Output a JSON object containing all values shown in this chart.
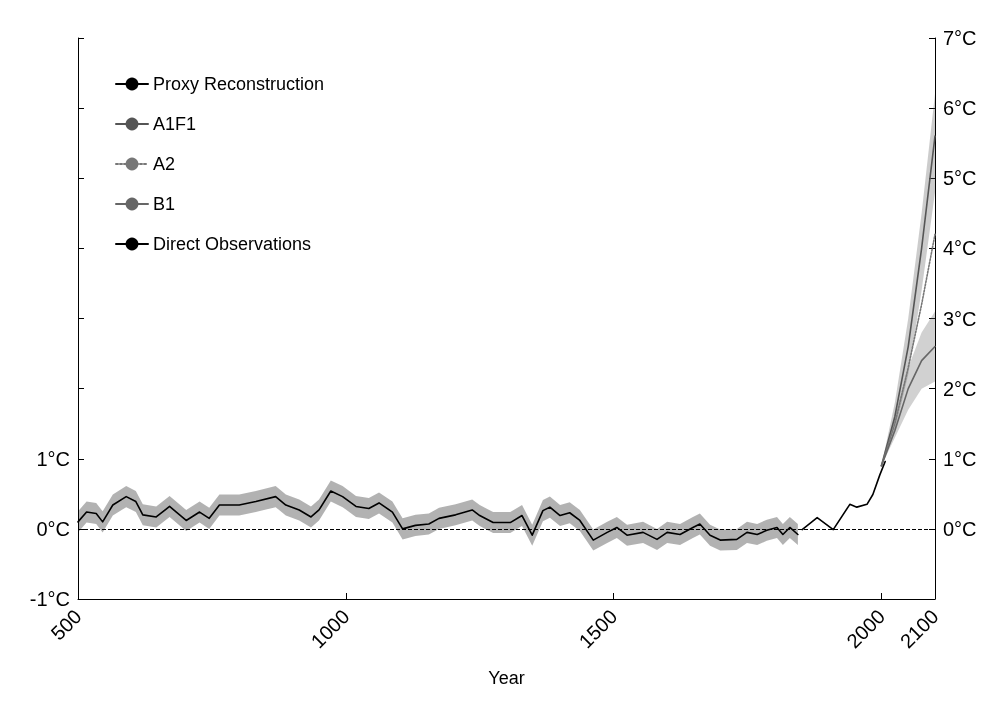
{
  "chart_data": {
    "type": "line",
    "xlabel": "Year",
    "xlim": [
      500,
      2100
    ],
    "xticks": [
      500,
      1000,
      1500,
      2000,
      2100
    ],
    "ylim": [
      -1,
      7
    ],
    "yticks": [
      {
        "value": -1,
        "label": "-1°C"
      },
      {
        "value": 0,
        "label": "0°C"
      },
      {
        "value": 1,
        "label": "1°C"
      },
      {
        "value": 2,
        "label": null
      },
      {
        "value": 3,
        "label": null
      },
      {
        "value": 4,
        "label": null
      },
      {
        "value": 5,
        "label": null
      },
      {
        "value": 6,
        "label": null
      },
      {
        "value": 7,
        "label": null
      }
    ],
    "y2lim": [
      -1,
      7
    ],
    "y2ticks": [
      {
        "value": 0,
        "label": "0°C"
      },
      {
        "value": 1,
        "label": "1°C"
      },
      {
        "value": 2,
        "label": "2°C"
      },
      {
        "value": 3,
        "label": "3°C"
      },
      {
        "value": 4,
        "label": "4°C"
      },
      {
        "value": 5,
        "label": "5°C"
      },
      {
        "value": 6,
        "label": "6°C"
      },
      {
        "value": 7,
        "label": "7°C"
      }
    ],
    "grid": false,
    "legend": "top left",
    "marker": "none",
    "ref_lines": [
      {
        "axis": "y",
        "value": 0,
        "label": null,
        "color": "#000000",
        "line_style": "dashed"
      }
    ],
    "series": [
      {
        "name": "Proxy Reconstruction",
        "color": "#000000",
        "line_style": "solid",
        "x": [
          500,
          516,
          534,
          546,
          565,
          590,
          608,
          621,
          646,
          671,
          702,
          727,
          745,
          764,
          801,
          832,
          869,
          888,
          913,
          935,
          950,
          972,
          994,
          1019,
          1043,
          1062,
          1087,
          1106,
          1130,
          1155,
          1174,
          1205,
          1236,
          1250,
          1275,
          1307,
          1329,
          1348,
          1368,
          1381,
          1400,
          1418,
          1437,
          1462,
          1488,
          1506,
          1525,
          1555,
          1581,
          1600,
          1624,
          1648,
          1661,
          1680,
          1699,
          1730,
          1749,
          1768,
          1786,
          1805,
          1816,
          1829,
          1844
        ],
        "values": [
          0.1,
          0.24,
          0.22,
          0.1,
          0.34,
          0.46,
          0.39,
          0.2,
          0.17,
          0.32,
          0.12,
          0.24,
          0.15,
          0.34,
          0.34,
          0.39,
          0.46,
          0.34,
          0.27,
          0.17,
          0.27,
          0.54,
          0.46,
          0.32,
          0.29,
          0.37,
          0.24,
          0.0,
          0.05,
          0.07,
          0.15,
          0.2,
          0.27,
          0.19,
          0.09,
          0.09,
          0.19,
          -0.09,
          0.26,
          0.31,
          0.19,
          0.23,
          0.12,
          -0.16,
          -0.05,
          0.02,
          -0.09,
          -0.05,
          -0.15,
          -0.05,
          -0.08,
          0.02,
          0.07,
          -0.09,
          -0.16,
          -0.15,
          -0.05,
          -0.08,
          -0.02,
          0.02,
          -0.08,
          0.02,
          -0.08
        ],
        "lower": [
          -0.05,
          0.09,
          0.07,
          -0.05,
          0.19,
          0.31,
          0.24,
          0.05,
          0.02,
          0.17,
          -0.03,
          0.09,
          0.0,
          0.19,
          0.19,
          0.24,
          0.31,
          0.19,
          0.12,
          0.02,
          0.12,
          0.39,
          0.31,
          0.17,
          0.14,
          0.22,
          0.09,
          -0.15,
          -0.1,
          -0.08,
          0.0,
          0.05,
          0.12,
          0.04,
          -0.06,
          -0.06,
          0.04,
          -0.24,
          0.11,
          0.16,
          0.04,
          0.08,
          -0.03,
          -0.31,
          -0.2,
          -0.13,
          -0.24,
          -0.2,
          -0.3,
          -0.2,
          -0.23,
          -0.13,
          -0.08,
          -0.24,
          -0.31,
          -0.3,
          -0.2,
          -0.23,
          -0.17,
          -0.13,
          -0.23,
          -0.13,
          -0.23
        ],
        "upper": [
          0.25,
          0.39,
          0.37,
          0.25,
          0.49,
          0.61,
          0.54,
          0.35,
          0.32,
          0.47,
          0.27,
          0.39,
          0.3,
          0.49,
          0.49,
          0.54,
          0.61,
          0.49,
          0.42,
          0.32,
          0.42,
          0.69,
          0.61,
          0.47,
          0.44,
          0.52,
          0.39,
          0.15,
          0.2,
          0.22,
          0.3,
          0.35,
          0.42,
          0.34,
          0.24,
          0.24,
          0.34,
          0.06,
          0.41,
          0.46,
          0.34,
          0.38,
          0.27,
          -0.01,
          0.1,
          0.17,
          0.06,
          0.1,
          0.0,
          0.1,
          0.07,
          0.17,
          0.22,
          0.06,
          -0.01,
          0.0,
          0.1,
          0.07,
          0.13,
          0.17,
          0.07,
          0.17,
          0.07
        ]
      },
      {
        "name": "A1F1",
        "color": "#555555",
        "line_style": "solid",
        "x": [
          2000,
          2025,
          2050,
          2075,
          2100
        ],
        "values": [
          0.9,
          1.6,
          2.6,
          4.0,
          5.6
        ],
        "lower": [
          0.9,
          1.4,
          2.2,
          3.4,
          4.8
        ],
        "upper": [
          0.9,
          1.8,
          3.0,
          4.5,
          6.2
        ]
      },
      {
        "name": "A2",
        "color": "#777777",
        "line_style": "dotted",
        "x": [
          2000,
          2025,
          2050,
          2075,
          2100
        ],
        "values": [
          0.9,
          1.5,
          2.3,
          3.2,
          4.2
        ]
      },
      {
        "name": "B1",
        "color": "#666666",
        "line_style": "solid",
        "x": [
          2000,
          2025,
          2050,
          2075,
          2100
        ],
        "values": [
          0.9,
          1.4,
          2.0,
          2.4,
          2.6
        ],
        "lower": [
          0.9,
          1.3,
          1.7,
          2.0,
          2.1
        ],
        "upper": [
          0.9,
          1.6,
          2.3,
          2.8,
          3.1
        ]
      },
      {
        "name": "Direct Observations",
        "color": "#000000",
        "line_style": "solid",
        "x": [
          1852,
          1880,
          1910,
          1941,
          1954,
          1973,
          1984,
          1997,
          2007
        ],
        "values": [
          -0.01,
          0.16,
          -0.01,
          0.35,
          0.31,
          0.35,
          0.49,
          0.77,
          0.96
        ]
      }
    ]
  }
}
